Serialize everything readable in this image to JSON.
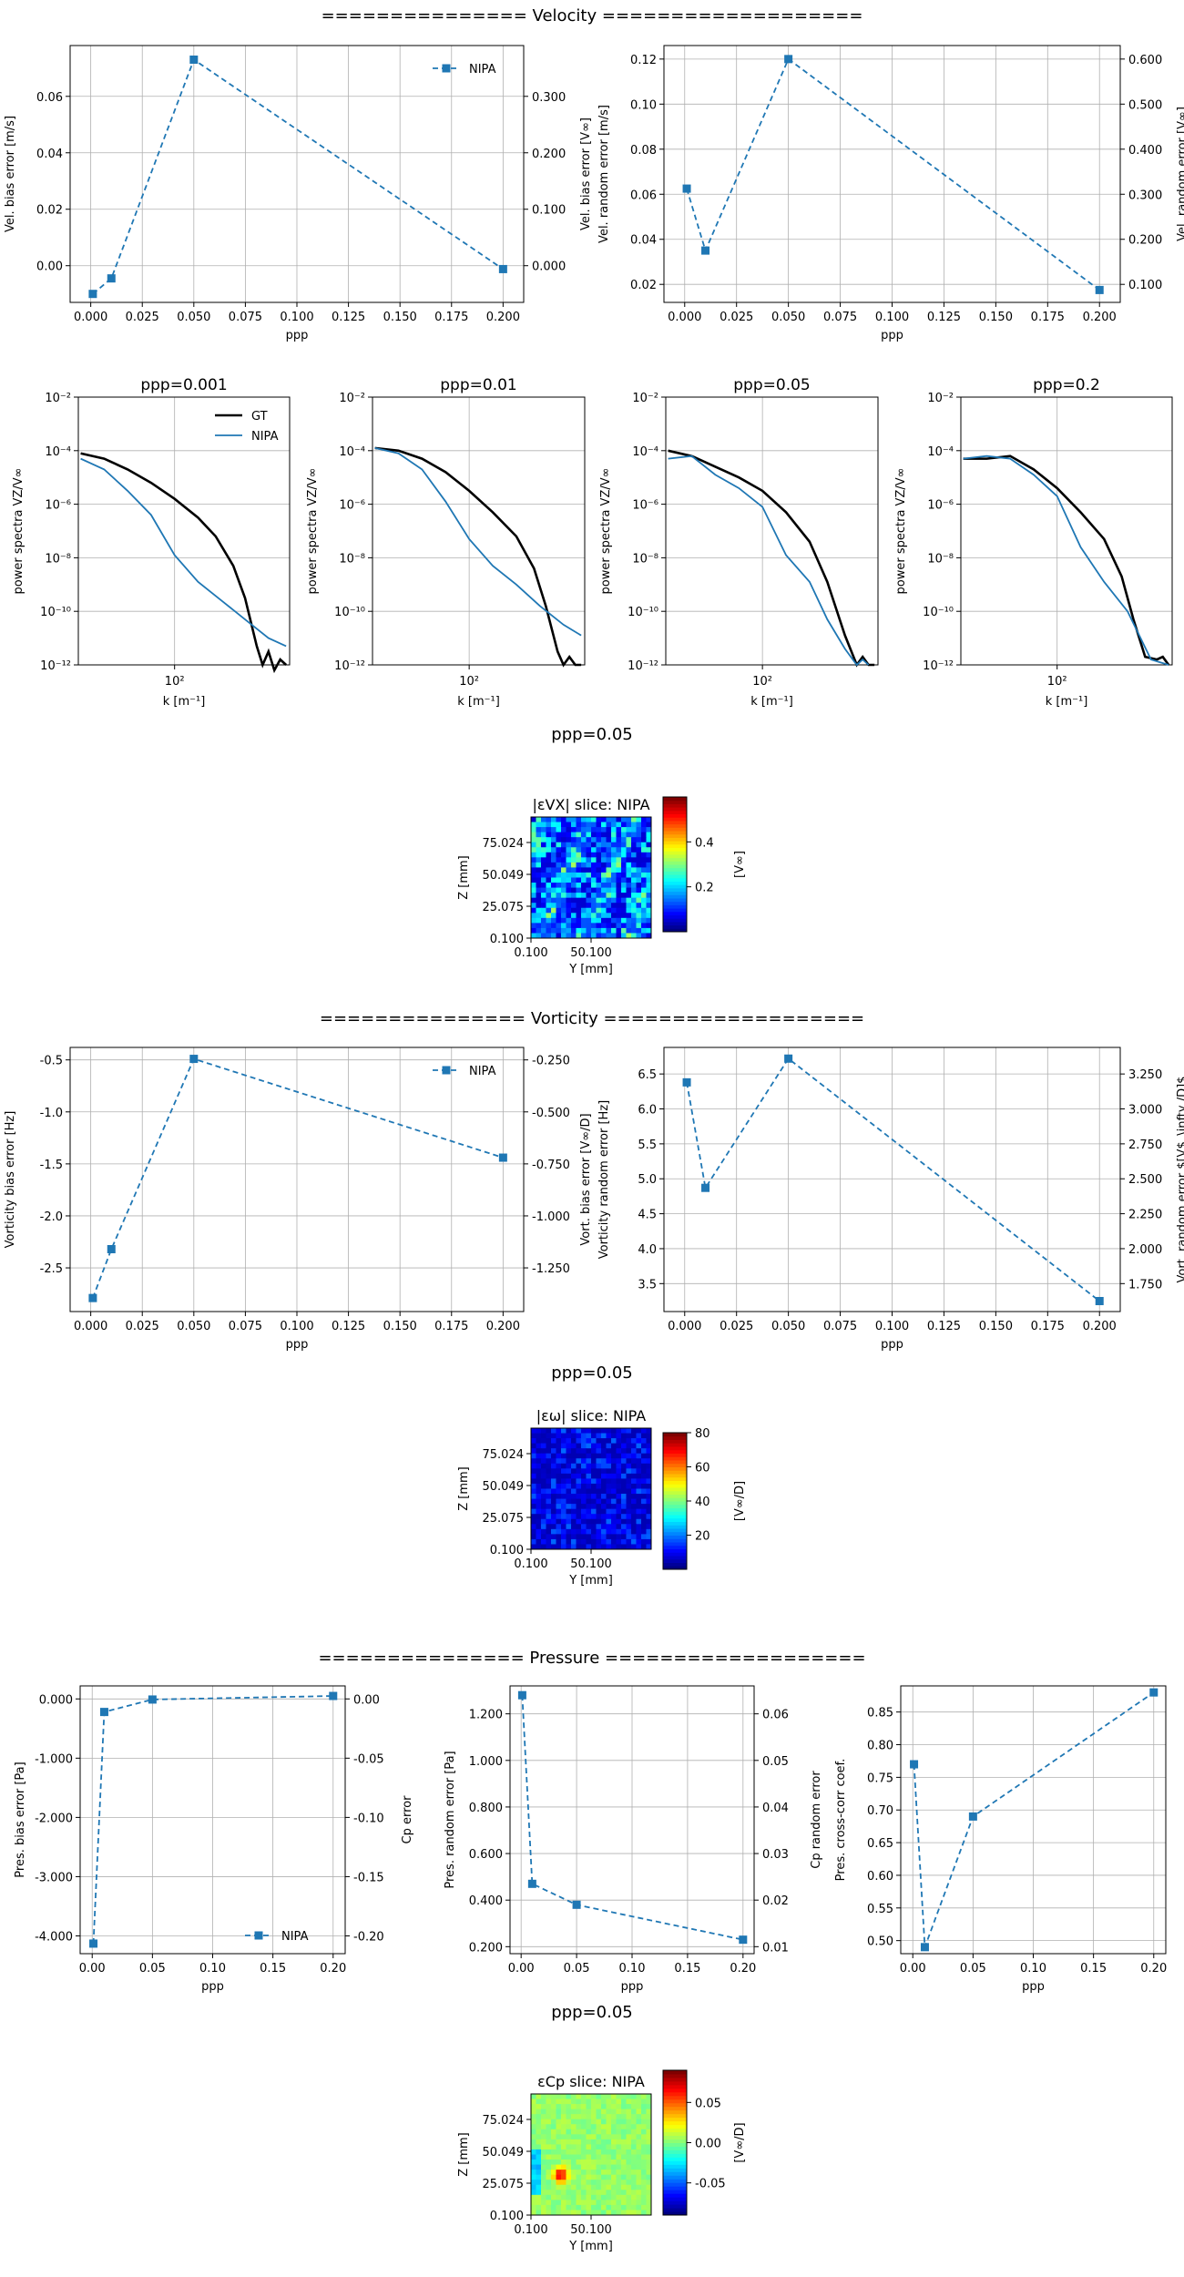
{
  "sections": {
    "velocity": "=============== Velocity ===================",
    "vorticity": "=============== Vorticity ===================",
    "pressure": "=============== Pressure ==================="
  },
  "colors": {
    "series": "#1f77b4",
    "gt": "#000000",
    "grid": "#b0b0b0"
  },
  "chart_data": [
    {
      "id": "vel_bias",
      "type": "line",
      "xlabel": "ppp",
      "ylabel": "Vel. bias error [m/s]",
      "y2label": "Vel. bias error [V∞]",
      "xlim": [
        -0.01,
        0.21
      ],
      "ylim": [
        -0.013,
        0.078
      ],
      "y2lim": [
        -0.065,
        0.39
      ],
      "xticks": [
        "0.000",
        "0.025",
        "0.050",
        "0.075",
        "0.100",
        "0.125",
        "0.150",
        "0.175",
        "0.200"
      ],
      "yticks": [
        "0.00",
        "0.02",
        "0.04",
        "0.06"
      ],
      "y2ticks": [
        "0.000",
        "0.100",
        "0.200",
        "0.300"
      ],
      "legend": "top-right",
      "grid": true,
      "series": [
        {
          "name": "NIPA",
          "x": [
            0.001,
            0.01,
            0.05,
            0.2
          ],
          "y": [
            -0.01,
            -0.0045,
            0.073,
            -0.0012
          ]
        }
      ]
    },
    {
      "id": "vel_random",
      "type": "line",
      "xlabel": "ppp",
      "ylabel": "Vel. random error [m/s]",
      "y2label": "Vel. random error [V∞]",
      "xlim": [
        -0.01,
        0.21
      ],
      "ylim": [
        0.012,
        0.126
      ],
      "y2lim": [
        0.06,
        0.63
      ],
      "xticks": [
        "0.000",
        "0.025",
        "0.050",
        "0.075",
        "0.100",
        "0.125",
        "0.150",
        "0.175",
        "0.200"
      ],
      "yticks": [
        "0.02",
        "0.04",
        "0.06",
        "0.08",
        "0.10",
        "0.12"
      ],
      "y2ticks": [
        "0.100",
        "0.200",
        "0.300",
        "0.400",
        "0.500",
        "0.600"
      ],
      "grid": true,
      "series": [
        {
          "name": "NIPA",
          "x": [
            0.001,
            0.01,
            0.05,
            0.2
          ],
          "y": [
            0.0625,
            0.035,
            0.12,
            0.0175
          ]
        }
      ]
    },
    {
      "id": "psd_0001",
      "type": "line",
      "title": "ppp=0.001",
      "xlabel": "k [m⁻¹]",
      "ylabel": "power spectra VZ/V∞",
      "logx": true,
      "logy": true,
      "xlim_log10": [
        1.18,
        2.98
      ],
      "ylim_log10": [
        -12,
        -2
      ],
      "yticks": [
        "10⁻¹²",
        "10⁻¹⁰",
        "10⁻⁸",
        "10⁻⁶",
        "10⁻⁴",
        "10⁻²"
      ],
      "xticks": [
        "10²"
      ],
      "legend": "top-right",
      "grid": true,
      "series": [
        {
          "name": "GT",
          "x": [
            1.2,
            1.4,
            1.6,
            1.8,
            2.0,
            2.2,
            2.35,
            2.5,
            2.6,
            2.7,
            2.75,
            2.8,
            2.85,
            2.9,
            2.95
          ],
          "y": [
            -4.1,
            -4.3,
            -4.7,
            -5.2,
            -5.8,
            -6.5,
            -7.2,
            -8.3,
            -9.5,
            -11.3,
            -12.0,
            -11.5,
            -12.2,
            -11.8,
            -12.0
          ]
        },
        {
          "name": "NIPA",
          "x": [
            1.2,
            1.4,
            1.6,
            1.8,
            2.0,
            2.2,
            2.4,
            2.6,
            2.8,
            2.95
          ],
          "y": [
            -4.3,
            -4.7,
            -5.5,
            -6.4,
            -7.9,
            -8.9,
            -9.6,
            -10.3,
            -11.0,
            -11.3
          ]
        }
      ]
    },
    {
      "id": "psd_001",
      "type": "line",
      "title": "ppp=0.01",
      "xlabel": "k [m⁻¹]",
      "ylabel": "power spectra VZ/V∞",
      "logx": true,
      "logy": true,
      "xlim_log10": [
        1.18,
        2.98
      ],
      "ylim_log10": [
        -12,
        -2
      ],
      "yticks": [
        "10⁻¹²",
        "10⁻¹⁰",
        "10⁻⁸",
        "10⁻⁶",
        "10⁻⁴",
        "10⁻²"
      ],
      "xticks": [
        "10²"
      ],
      "grid": true,
      "series": [
        {
          "name": "GT",
          "x": [
            1.2,
            1.4,
            1.6,
            1.8,
            2.0,
            2.2,
            2.4,
            2.55,
            2.65,
            2.75,
            2.8,
            2.85,
            2.9,
            2.95
          ],
          "y": [
            -3.9,
            -4.0,
            -4.3,
            -4.8,
            -5.5,
            -6.3,
            -7.2,
            -8.4,
            -9.8,
            -11.5,
            -12.0,
            -11.7,
            -12.0,
            -12.0
          ]
        },
        {
          "name": "NIPA",
          "x": [
            1.2,
            1.4,
            1.6,
            1.8,
            2.0,
            2.2,
            2.4,
            2.6,
            2.8,
            2.95
          ],
          "y": [
            -3.9,
            -4.1,
            -4.7,
            -5.9,
            -7.3,
            -8.3,
            -9.0,
            -9.8,
            -10.5,
            -10.9
          ]
        }
      ]
    },
    {
      "id": "psd_005",
      "type": "line",
      "title": "ppp=0.05",
      "xlabel": "k [m⁻¹]",
      "ylabel": "power spectra VZ/V∞",
      "logx": true,
      "logy": true,
      "xlim_log10": [
        1.18,
        2.98
      ],
      "ylim_log10": [
        -12,
        -2
      ],
      "yticks": [
        "10⁻¹²",
        "10⁻¹⁰",
        "10⁻⁸",
        "10⁻⁶",
        "10⁻⁴",
        "10⁻²"
      ],
      "xticks": [
        "10²"
      ],
      "grid": true,
      "series": [
        {
          "name": "GT",
          "x": [
            1.2,
            1.4,
            1.6,
            1.8,
            2.0,
            2.2,
            2.4,
            2.55,
            2.7,
            2.8,
            2.85,
            2.9,
            2.95
          ],
          "y": [
            -4.0,
            -4.2,
            -4.6,
            -5.0,
            -5.5,
            -6.3,
            -7.4,
            -8.9,
            -10.9,
            -12.0,
            -11.7,
            -12.0,
            -12.0
          ]
        },
        {
          "name": "NIPA",
          "x": [
            1.2,
            1.4,
            1.6,
            1.8,
            2.0,
            2.2,
            2.4,
            2.55,
            2.7,
            2.8,
            2.85,
            2.9
          ],
          "y": [
            -4.3,
            -4.2,
            -4.9,
            -5.4,
            -6.1,
            -7.9,
            -8.9,
            -10.3,
            -11.4,
            -12.0,
            -11.8,
            -12.0
          ]
        }
      ]
    },
    {
      "id": "psd_02",
      "type": "line",
      "title": "ppp=0.2",
      "xlabel": "k [m⁻¹]",
      "ylabel": "power spectra VZ/V∞",
      "logx": true,
      "logy": true,
      "xlim_log10": [
        1.18,
        2.98
      ],
      "ylim_log10": [
        -12,
        -2
      ],
      "yticks": [
        "10⁻¹²",
        "10⁻¹⁰",
        "10⁻⁸",
        "10⁻⁶",
        "10⁻⁴",
        "10⁻²"
      ],
      "xticks": [
        "10²"
      ],
      "grid": true,
      "series": [
        {
          "name": "GT",
          "x": [
            1.2,
            1.4,
            1.6,
            1.8,
            2.0,
            2.2,
            2.4,
            2.55,
            2.65,
            2.75,
            2.85,
            2.9,
            2.95
          ],
          "y": [
            -4.3,
            -4.3,
            -4.2,
            -4.7,
            -5.4,
            -6.3,
            -7.3,
            -8.7,
            -10.3,
            -11.7,
            -11.8,
            -11.7,
            -12.0
          ]
        },
        {
          "name": "NIPA",
          "x": [
            1.2,
            1.4,
            1.6,
            1.8,
            2.0,
            2.2,
            2.4,
            2.6,
            2.8,
            2.95
          ],
          "y": [
            -4.3,
            -4.2,
            -4.3,
            -4.9,
            -5.7,
            -7.6,
            -8.9,
            -10.0,
            -11.8,
            -12.0
          ]
        }
      ]
    },
    {
      "id": "vort_bias",
      "type": "line",
      "xlabel": "ppp",
      "ylabel": "Vorticity bias error [Hz]",
      "y2label": "Vort. bias error [V∞/D]",
      "xlim": [
        -0.01,
        0.21
      ],
      "ylim": [
        -2.92,
        -0.38
      ],
      "y2lim": [
        -1.46,
        -0.19
      ],
      "xticks": [
        "0.000",
        "0.025",
        "0.050",
        "0.075",
        "0.100",
        "0.125",
        "0.150",
        "0.175",
        "0.200"
      ],
      "yticks": [
        "-2.5",
        "-2.0",
        "-1.5",
        "-1.0",
        "-0.5"
      ],
      "y2ticks": [
        "-1.250",
        "-1.000",
        "-0.750",
        "-0.500",
        "-0.250"
      ],
      "legend": "top-right",
      "grid": true,
      "series": [
        {
          "name": "NIPA",
          "x": [
            0.001,
            0.01,
            0.05,
            0.2
          ],
          "y": [
            -2.79,
            -2.32,
            -0.49,
            -1.44
          ]
        }
      ]
    },
    {
      "id": "vort_random",
      "type": "line",
      "xlabel": "ppp",
      "ylabel": "Vorticity random error [Hz]",
      "y2label": "Vort. random error $[V$_\\infty /D]$",
      "xlim": [
        -0.01,
        0.21
      ],
      "ylim": [
        3.1,
        6.88
      ],
      "y2lim": [
        1.55,
        3.44
      ],
      "xticks": [
        "0.000",
        "0.025",
        "0.050",
        "0.075",
        "0.100",
        "0.125",
        "0.150",
        "0.175",
        "0.200"
      ],
      "yticks": [
        "3.5",
        "4.0",
        "4.5",
        "5.0",
        "5.5",
        "6.0",
        "6.5"
      ],
      "y2ticks": [
        "1.750",
        "2.000",
        "2.250",
        "2.500",
        "2.750",
        "3.000",
        "3.250"
      ],
      "grid": true,
      "series": [
        {
          "name": "NIPA",
          "x": [
            0.001,
            0.01,
            0.05,
            0.2
          ],
          "y": [
            6.38,
            4.87,
            6.72,
            3.25
          ]
        }
      ]
    },
    {
      "id": "pres_bias",
      "type": "line",
      "xlabel": "ppp",
      "ylabel": "Pres. bias error [Pa]",
      "y2label": "Cp error",
      "xlim": [
        -0.01,
        0.21
      ],
      "ylim": [
        -4.3,
        0.22
      ],
      "y2lim": [
        -0.215,
        0.011
      ],
      "xticks": [
        "0.00",
        "0.05",
        "0.10",
        "0.15",
        "0.20"
      ],
      "yticks": [
        "-4.000",
        "-3.000",
        "-2.000",
        "-1.000",
        "0.000"
      ],
      "y2ticks": [
        "-0.20",
        "-0.15",
        "-0.10",
        "-0.05",
        "0.00"
      ],
      "legend": "bottom-right",
      "grid": true,
      "series": [
        {
          "name": "NIPA",
          "x": [
            0.001,
            0.01,
            0.05,
            0.2
          ],
          "y": [
            -4.13,
            -0.22,
            -0.01,
            0.05
          ]
        }
      ]
    },
    {
      "id": "pres_random",
      "type": "line",
      "xlabel": "ppp",
      "ylabel": "Pres. random error [Pa]",
      "y2label": "Cp random error",
      "xlim": [
        -0.01,
        0.21
      ],
      "ylim": [
        0.17,
        1.32
      ],
      "y2lim": [
        0.0085,
        0.066
      ],
      "xticks": [
        "0.00",
        "0.05",
        "0.10",
        "0.15",
        "0.20"
      ],
      "yticks": [
        "0.200",
        "0.400",
        "0.600",
        "0.800",
        "1.000",
        "1.200"
      ],
      "y2ticks": [
        "0.01",
        "0.02",
        "0.03",
        "0.04",
        "0.05",
        "0.06"
      ],
      "grid": true,
      "series": [
        {
          "name": "NIPA",
          "x": [
            0.001,
            0.01,
            0.05,
            0.2
          ],
          "y": [
            1.28,
            0.47,
            0.38,
            0.23
          ]
        }
      ]
    },
    {
      "id": "pres_cc",
      "type": "line",
      "xlabel": "ppp",
      "ylabel": "Pres. cross-corr coef.",
      "xlim": [
        -0.01,
        0.21
      ],
      "ylim": [
        0.48,
        0.89
      ],
      "xticks": [
        "0.00",
        "0.05",
        "0.10",
        "0.15",
        "0.20"
      ],
      "yticks": [
        "0.50",
        "0.55",
        "0.60",
        "0.65",
        "0.70",
        "0.75",
        "0.80",
        "0.85"
      ],
      "grid": true,
      "series": [
        {
          "name": "NIPA",
          "x": [
            0.001,
            0.01,
            0.05,
            0.2
          ],
          "y": [
            0.77,
            0.49,
            0.69,
            0.88
          ]
        }
      ]
    },
    {
      "id": "slice_vel",
      "type": "heatmap",
      "caption": "ppp=0.05",
      "title": "|εVX| slice: NIPA",
      "xlabel": "Y [mm]",
      "ylabel": "Z [mm]",
      "xticks": [
        "0.100",
        "50.100"
      ],
      "yticks": [
        "0.100",
        "25.075",
        "50.049",
        "75.024"
      ],
      "colorbar": {
        "label": "[V∞]",
        "ticks": [
          "0.2",
          "0.4"
        ],
        "range": [
          0.0,
          0.6
        ]
      }
    },
    {
      "id": "slice_vort",
      "type": "heatmap",
      "caption": "ppp=0.05",
      "title": "|εω| slice: NIPA",
      "xlabel": "Y [mm]",
      "ylabel": "Z [mm]",
      "xticks": [
        "0.100",
        "50.100"
      ],
      "yticks": [
        "0.100",
        "25.075",
        "50.049",
        "75.024"
      ],
      "colorbar": {
        "label": "[V∞/D]",
        "ticks": [
          "20",
          "40",
          "60",
          "80"
        ],
        "range": [
          0,
          80
        ]
      }
    },
    {
      "id": "slice_pres",
      "type": "heatmap",
      "caption": "ppp=0.05",
      "title": "εCp slice: NIPA",
      "xlabel": "Y [mm]",
      "ylabel": "Z [mm]",
      "xticks": [
        "0.100",
        "50.100"
      ],
      "yticks": [
        "0.100",
        "25.075",
        "50.049",
        "75.024"
      ],
      "colorbar": {
        "label": "[V∞/D]",
        "ticks": [
          "-0.05",
          "0.00",
          "0.05"
        ],
        "range": [
          -0.09,
          0.09
        ]
      }
    }
  ]
}
